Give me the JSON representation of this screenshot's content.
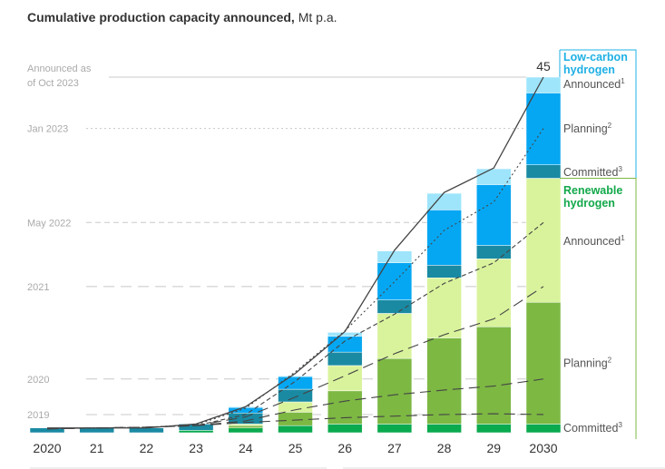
{
  "chart_data": {
    "type": "bar",
    "stacked": true,
    "title": "Cumulative production capacity announced,",
    "unit": "Mt p.a.",
    "categories": [
      "2020",
      "21",
      "22",
      "23",
      "24",
      "25",
      "26",
      "27",
      "28",
      "29",
      "2030"
    ],
    "ylim": [
      0,
      45
    ],
    "grid": false,
    "legend_placement": "right",
    "total_label": "45",
    "groups": [
      {
        "name": "Low-carbon hydrogen",
        "color": "#1eb0e4"
      },
      {
        "name": "Renewable hydrogen",
        "color": "#12a84a"
      }
    ],
    "series": [
      {
        "name": "Committed",
        "group": 1,
        "sup": "3",
        "color": "#0aaa4e",
        "values": [
          0,
          0,
          0,
          0.3,
          0.6,
          0.9,
          1.1,
          1.1,
          1.1,
          1.1,
          1.1
        ]
      },
      {
        "name": "Planning",
        "group": 1,
        "sup": "2",
        "color": "#7db843",
        "values": [
          0,
          0,
          0,
          0,
          0.3,
          1.7,
          4.2,
          8.3,
          10.9,
          12.3,
          15.4
        ]
      },
      {
        "name": "Announced",
        "group": 1,
        "sup": "1",
        "color": "#d9f39c",
        "values": [
          0,
          0,
          0,
          0,
          0.2,
          1.3,
          3.2,
          5.7,
          7.6,
          8.6,
          15.7
        ]
      },
      {
        "name": "Committed",
        "group": 0,
        "sup": "3",
        "color": "#1a8aa3",
        "values": [
          0.6,
          0.6,
          0.6,
          0.8,
          1.4,
          1.6,
          1.7,
          1.7,
          1.6,
          1.7,
          1.7
        ]
      },
      {
        "name": "Planning",
        "group": 0,
        "sup": "2",
        "color": "#06a7f2",
        "values": [
          0,
          0,
          0,
          0,
          0.7,
          1.6,
          2.0,
          4.7,
          7.0,
          7.7,
          9.1
        ]
      },
      {
        "name": "Announced",
        "group": 0,
        "sup": "1",
        "color": "#9ee5fb",
        "values": [
          0,
          0,
          0,
          0,
          0.1,
          0.1,
          0.5,
          1.5,
          2.1,
          2.0,
          2.0
        ]
      }
    ],
    "vintage_lines": [
      {
        "label": "Announced as of Oct 2023",
        "label_lines": [
          "Announced as",
          "of Oct 2023"
        ],
        "style": "solid",
        "values": [
          0.6,
          0.6,
          0.6,
          1.1,
          3.3,
          7.5,
          12.8,
          23.1,
          30.4,
          33.5,
          45
        ]
      },
      {
        "label": "Jan 2023",
        "label_lines": [
          "Jan 2023"
        ],
        "style": "dotted",
        "values": [
          0.5,
          0.6,
          0.7,
          1.0,
          3.1,
          7.7,
          12.9,
          19.1,
          25.6,
          29.2,
          38.5
        ]
      },
      {
        "label": "May 2022",
        "label_lines": [
          "May 2022"
        ],
        "style": "dashed",
        "values": [
          0.5,
          0.6,
          0.7,
          0.9,
          2.3,
          6.5,
          11.6,
          15.0,
          18.9,
          21.5,
          26.6
        ]
      },
      {
        "label": "2021",
        "label_lines": [
          "2021"
        ],
        "style": "longdash",
        "values": [
          0.5,
          0.6,
          0.7,
          0.9,
          2.0,
          4.5,
          7.2,
          10.0,
          12.4,
          14.4,
          18.5
        ]
      },
      {
        "label": "2020",
        "label_lines": [
          "2020"
        ],
        "style": "longdash",
        "values": [
          0.5,
          0.6,
          0.7,
          0.9,
          1.5,
          2.9,
          4.0,
          4.8,
          5.4,
          5.9,
          6.8
        ]
      },
      {
        "label": "2019",
        "label_lines": [
          "2019"
        ],
        "style": "longdash",
        "values": [
          0.5,
          0.6,
          0.7,
          0.9,
          1.3,
          1.6,
          1.9,
          2.1,
          2.3,
          2.4,
          2.3
        ]
      }
    ]
  }
}
